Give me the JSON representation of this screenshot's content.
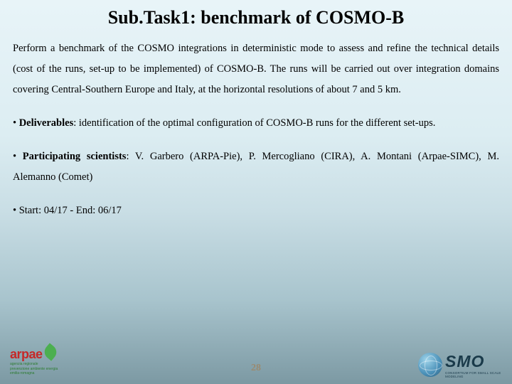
{
  "title": "Sub.Task1: benchmark of COSMO-B",
  "intro": "Perform a benchmark of the COSMO integrations in deterministic mode to assess and refine the technical details (cost of the runs, set-up to be implemented) of COSMO-B. The runs will be carried out over integration domains covering Central-Southern Europe and Italy, at the horizontal resolutions of about 7 and 5 km.",
  "bullets": {
    "deliverables": {
      "label": "Deliverables",
      "text": ": identification of the optimal configuration of COSMO-B runs for the different set-ups."
    },
    "participants": {
      "label": "Participating scientists",
      "text": ": V. Garbero (ARPA-Pie), P. Mercogliano (CIRA), A. Montani (Arpae-SIMC), M. Alemanno (Comet)"
    },
    "dates": {
      "text": "Start: 04/17 - End: 06/17"
    }
  },
  "page_number": "28",
  "logo_left": {
    "brand": "arpae",
    "sub1": "agenzia regionale",
    "sub2": "prevenzione ambiente energia",
    "sub3": "emilia-romagna"
  },
  "logo_right": {
    "smo": "SMO",
    "tagline": "CONSORTIUM FOR SMALL SCALE MODELING"
  },
  "colors": {
    "bg_top": "#e8f4f8",
    "bg_bottom": "#7c99a3",
    "title_color": "#000000",
    "body_color": "#000000",
    "pagenum_color": "#9a8a70",
    "arpae_red": "#c62828",
    "arpae_green": "#2e7d32",
    "cosmo_navy": "#1a3a4a"
  },
  "typography": {
    "title_fontsize": 26,
    "body_fontsize": 14.5,
    "font_family": "Times New Roman"
  }
}
